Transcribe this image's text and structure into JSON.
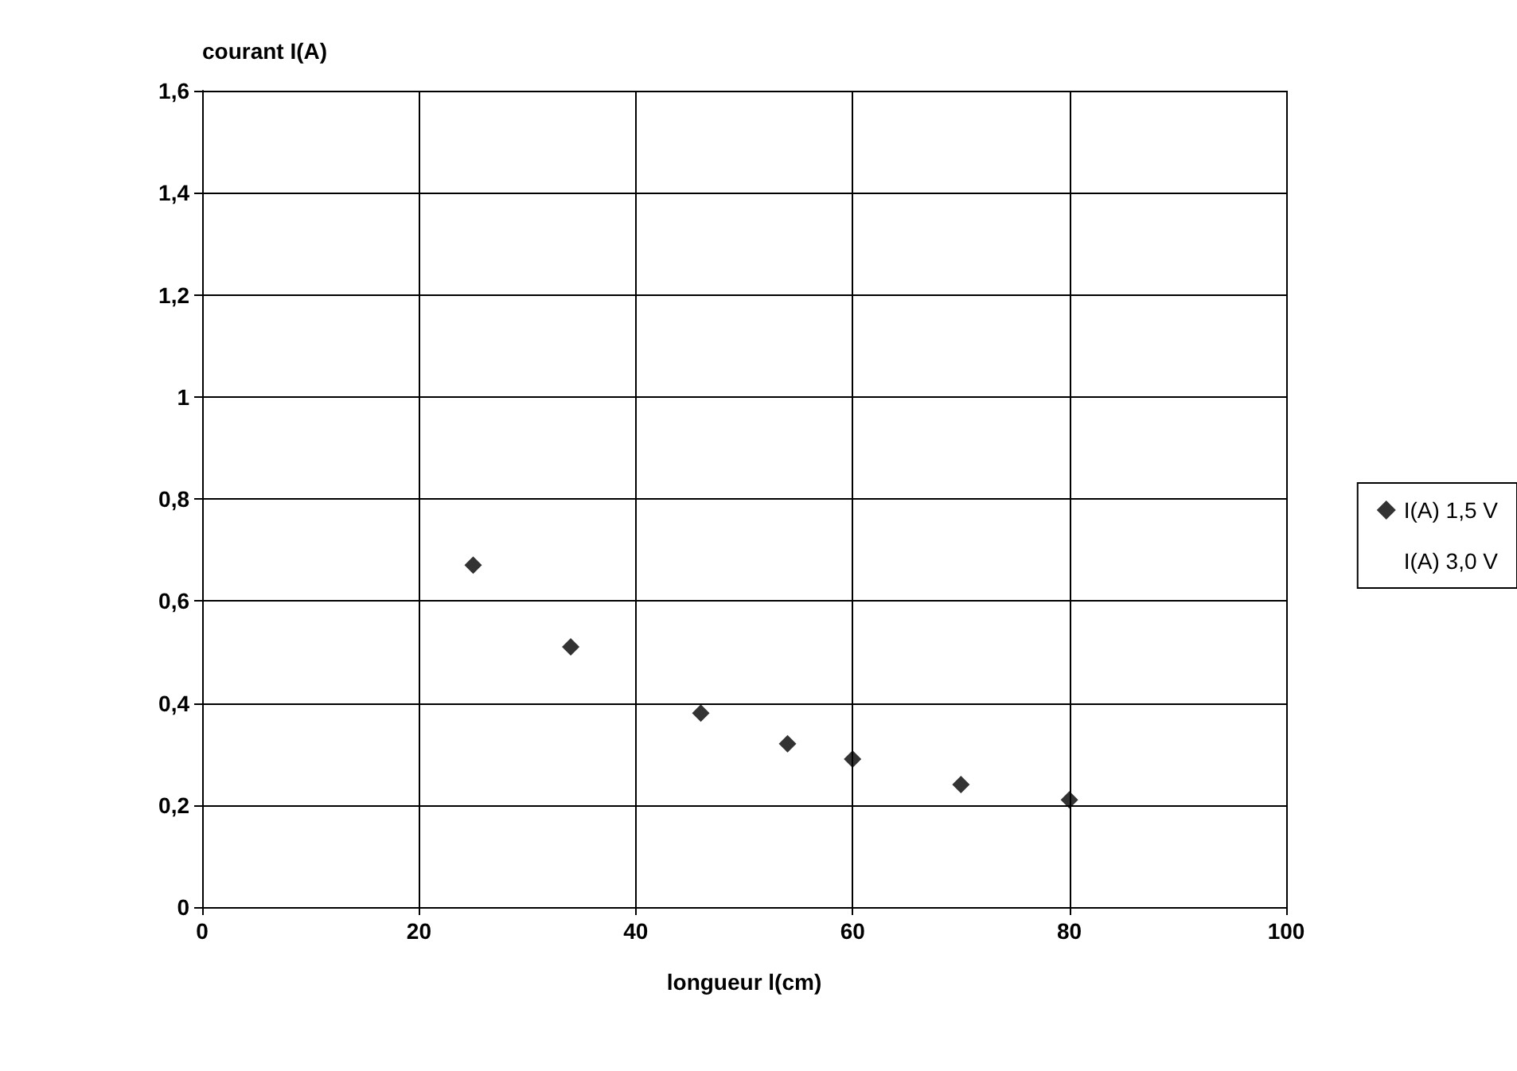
{
  "chart_data": {
    "type": "scatter",
    "xlabel": "longueur l(cm)",
    "ylabel": "courant I(A)",
    "x": [
      25,
      34,
      46,
      54,
      60,
      70,
      80
    ],
    "series": [
      {
        "name": "I(A) 1,5 V",
        "color": "#000000",
        "values": [
          0.67,
          0.51,
          0.38,
          0.32,
          0.29,
          0.24,
          0.21
        ]
      },
      {
        "name": "I(A) 3,0 V",
        "values": [
          null,
          null,
          null,
          null,
          null,
          null,
          null
        ]
      }
    ],
    "xlim": [
      0,
      100
    ],
    "xticks": [
      0,
      20,
      40,
      60,
      80,
      100
    ],
    "ylim": [
      0,
      1.6
    ],
    "yticks": [
      0,
      {
        "value": 0.2,
        "label": "0,2"
      },
      {
        "value": 0.4,
        "label": "0,4"
      },
      {
        "value": 0.6,
        "label": "0,6"
      },
      {
        "value": 0.8,
        "label": "0,8"
      },
      1,
      {
        "value": 1.2,
        "label": "1,2"
      },
      {
        "value": 1.4,
        "label": "1,4"
      },
      {
        "value": 1.6,
        "label": "1,6"
      }
    ],
    "grid": true,
    "legend": "right",
    "marker": "diamond"
  }
}
